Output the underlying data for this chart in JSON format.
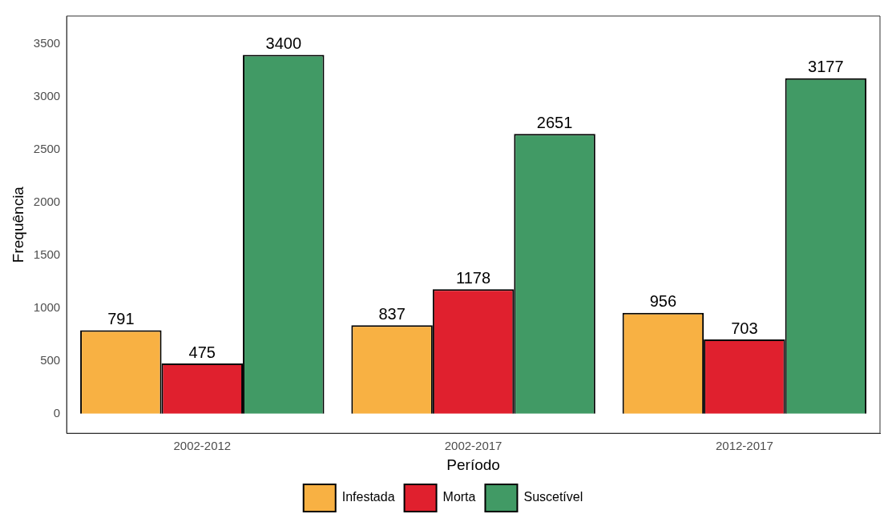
{
  "chart_data": {
    "type": "bar",
    "xlabel": "Período",
    "ylabel": "Frequência",
    "categories": [
      "2002-2012",
      "2002-2017",
      "2012-2017"
    ],
    "series": [
      {
        "name": "Infestada",
        "color": "#f8b143",
        "values": [
          791,
          837,
          956
        ]
      },
      {
        "name": "Morta",
        "color": "#e0202e",
        "values": [
          475,
          1178,
          703
        ]
      },
      {
        "name": "Suscetível",
        "color": "#419a65",
        "values": [
          3400,
          2651,
          3177
        ]
      }
    ],
    "ylim": [
      -186,
      3767
    ],
    "yticks": [
      0,
      500,
      1000,
      1500,
      2000,
      2500,
      3000,
      3500
    ],
    "grid": false,
    "legend": "bottom",
    "data_labels": true
  }
}
